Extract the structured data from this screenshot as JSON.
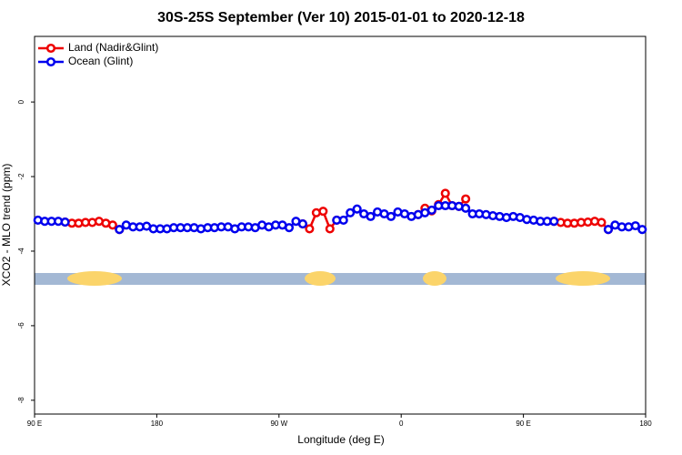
{
  "chart_data": {
    "type": "line",
    "title": "30S-25S September (Ver 10)   2015-01-01 to 2020-12-18",
    "x_label": "Longitude (deg E)",
    "y_label": "XCO2 - MLO trend (ppm)",
    "x": [
      92.5,
      97.5,
      102.5,
      107.5,
      112.5,
      117.5,
      122.5,
      127.5,
      132.5,
      137.5,
      142.5,
      147.5,
      152.5,
      157.5,
      162.5,
      167.5,
      172.5,
      177.5,
      182.5,
      187.5,
      192.5,
      197.5,
      202.5,
      207.5,
      212.5,
      217.5,
      222.5,
      227.5,
      232.5,
      237.5,
      242.5,
      247.5,
      252.5,
      257.5,
      262.5,
      267.5,
      272.5,
      277.5,
      282.5,
      287.5,
      292.5,
      297.5,
      302.5,
      307.5,
      312.5,
      317.5,
      322.5,
      327.5,
      332.5,
      337.5,
      342.5,
      347.5,
      352.5,
      357.5,
      362.5,
      367.5,
      372.5,
      377.5,
      382.5,
      387.5,
      392.5,
      397.5,
      402.5,
      407.5,
      412.5,
      417.5,
      422.5,
      427.5,
      432.5,
      437.5,
      442.5,
      447.5,
      452.5,
      457.5,
      462.5,
      467.5,
      472.5,
      477.5,
      482.5,
      487.5,
      492.5,
      497.5,
      502.5,
      507.5,
      512.5,
      517.5,
      522.5,
      527.5,
      532.5,
      537.5
    ],
    "series": [
      {
        "name": "Land (Nadir&Glint)",
        "color": "#ee0000",
        "values": [
          null,
          null,
          null,
          null,
          -3.22,
          -3.25,
          -3.25,
          -3.23,
          -3.23,
          -3.2,
          -3.25,
          -3.3,
          -3.42,
          null,
          null,
          null,
          null,
          null,
          null,
          null,
          null,
          null,
          null,
          null,
          null,
          null,
          null,
          null,
          null,
          null,
          null,
          null,
          null,
          null,
          null,
          null,
          null,
          null,
          null,
          -3.27,
          -3.4,
          -2.97,
          -2.93,
          -3.4,
          -3.17,
          null,
          null,
          null,
          null,
          null,
          null,
          null,
          null,
          null,
          null,
          null,
          -3.02,
          -2.85,
          -2.92,
          -2.75,
          -2.45,
          -2.78,
          -2.8,
          -2.6,
          null,
          null,
          null,
          null,
          null,
          null,
          null,
          null,
          null,
          null,
          null,
          null,
          -3.2,
          -3.23,
          -3.25,
          -3.25,
          -3.23,
          -3.22,
          -3.2,
          -3.23,
          -3.42,
          null,
          null,
          null,
          null,
          null
        ]
      },
      {
        "name": "Ocean (Glint)",
        "color": "#0000ee",
        "values": [
          -3.17,
          -3.2,
          -3.2,
          -3.2,
          -3.22,
          null,
          null,
          null,
          null,
          null,
          null,
          null,
          -3.42,
          -3.3,
          -3.35,
          -3.35,
          -3.33,
          -3.4,
          -3.4,
          -3.4,
          -3.37,
          -3.37,
          -3.37,
          -3.37,
          -3.4,
          -3.37,
          -3.37,
          -3.35,
          -3.35,
          -3.4,
          -3.35,
          -3.35,
          -3.37,
          -3.3,
          -3.35,
          -3.3,
          -3.3,
          -3.37,
          -3.2,
          -3.27,
          null,
          null,
          null,
          null,
          -3.17,
          -3.17,
          -2.97,
          -2.87,
          -3.0,
          -3.07,
          -2.95,
          -3.0,
          -3.07,
          -2.95,
          -3.0,
          -3.07,
          -3.02,
          -2.97,
          -2.9,
          -2.78,
          -2.78,
          -2.78,
          -2.8,
          -2.85,
          -3.0,
          -3.0,
          -3.02,
          -3.05,
          -3.07,
          -3.1,
          -3.07,
          -3.1,
          -3.15,
          -3.17,
          -3.2,
          -3.2,
          -3.2,
          null,
          null,
          null,
          null,
          null,
          null,
          null,
          -3.42,
          -3.3,
          -3.35,
          -3.35,
          -3.32,
          -3.42
        ]
      }
    ],
    "xlim": [
      90,
      540
    ],
    "xticks": [
      {
        "value": 90,
        "label": "90 E"
      },
      {
        "value": 180,
        "label": "180"
      },
      {
        "value": 270,
        "label": "90 W"
      },
      {
        "value": 360,
        "label": "0"
      },
      {
        "value": 450,
        "label": "90 E"
      },
      {
        "value": 540,
        "label": "180"
      }
    ],
    "ylim": [
      -8.37,
      1.76
    ],
    "yticks": [
      0,
      -2,
      -4,
      -6,
      -8
    ],
    "legend": "top-left"
  }
}
